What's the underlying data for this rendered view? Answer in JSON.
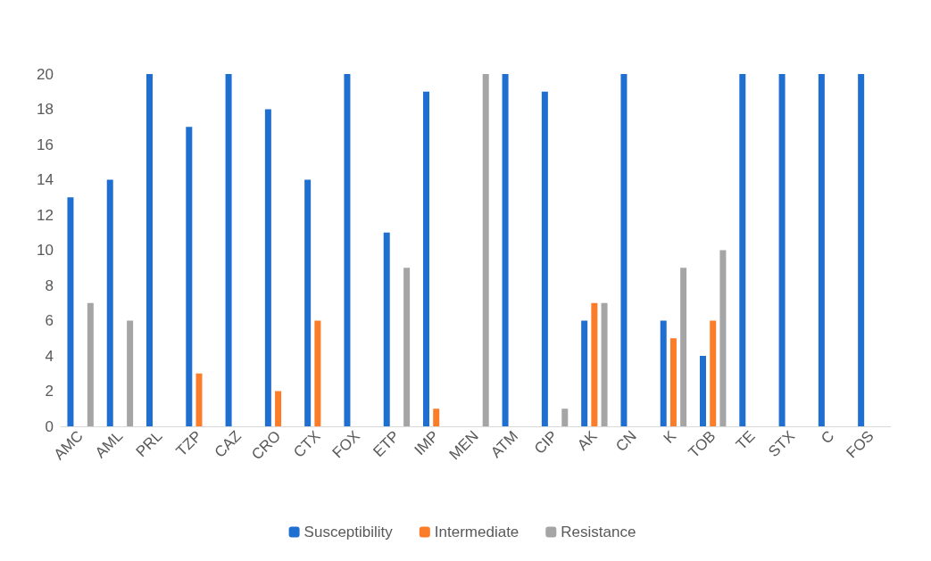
{
  "chart_data": {
    "type": "bar",
    "categories": [
      "AMC",
      "AML",
      "PRL",
      "TZP",
      "CAZ",
      "CRO",
      "CTX",
      "FOX",
      "ETP",
      "IMP",
      "MEN",
      "ATM",
      "CIP",
      "AK",
      "CN",
      "K",
      "TOB",
      "TE",
      "STX",
      "C",
      "FOS"
    ],
    "series": [
      {
        "name": "Susceptibility",
        "color": "#1f6fd0",
        "values": [
          13,
          14,
          20,
          17,
          20,
          18,
          14,
          20,
          11,
          19,
          0,
          20,
          19,
          6,
          20,
          6,
          4,
          20,
          20,
          20,
          20
        ]
      },
      {
        "name": "Intermediate",
        "color": "#fb7d2a",
        "values": [
          0,
          0,
          0,
          3,
          0,
          2,
          6,
          0,
          0,
          1,
          0,
          0,
          0,
          7,
          0,
          5,
          6,
          0,
          0,
          0,
          0
        ]
      },
      {
        "name": "Resistance",
        "color": "#a5a5a5",
        "values": [
          7,
          6,
          0,
          0,
          0,
          0,
          0,
          0,
          9,
          0,
          20,
          0,
          1,
          7,
          0,
          9,
          10,
          0,
          0,
          0,
          0
        ]
      }
    ],
    "ylim": [
      0,
      20
    ],
    "yticks": [
      0,
      2,
      4,
      6,
      8,
      10,
      12,
      14,
      16,
      18,
      20
    ],
    "grid": false,
    "legend": "bottom"
  }
}
